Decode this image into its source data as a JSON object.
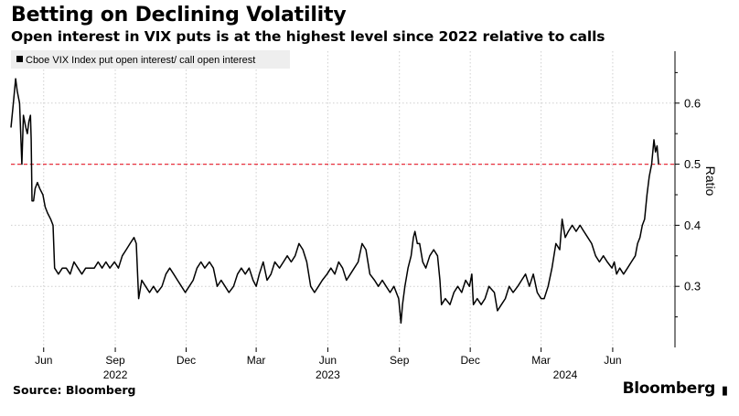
{
  "title": "Betting on Declining Volatility",
  "subtitle": "Open interest in VIX puts is at the highest level since 2022 relative to calls",
  "source": "Source: Bloomberg",
  "brand": "Bloomberg",
  "colors": {
    "line": "#000000",
    "reference": "#e8303d",
    "grid": "#cfcfcf",
    "legend_bg": "#eeeeee"
  },
  "chart_data": {
    "type": "line",
    "legend": "Cboe VIX Index put open interest/ call open interest",
    "legend_position": "top-left",
    "ylabel": "Ratio",
    "ylim": [
      0.2,
      0.685
    ],
    "yticks": [
      0.3,
      0.4,
      0.5,
      0.6
    ],
    "grid": true,
    "reference_line": {
      "y": 0.5,
      "style": "dashed"
    },
    "x_range": [
      "2022-04-20",
      "2024-08-20"
    ],
    "xticks": [
      {
        "date": "2022-06-01",
        "label": "Jun"
      },
      {
        "date": "2022-09-01",
        "label": "Sep"
      },
      {
        "date": "2022-12-01",
        "label": "Dec"
      },
      {
        "date": "2023-03-01",
        "label": "Mar"
      },
      {
        "date": "2023-06-01",
        "label": "Jun"
      },
      {
        "date": "2023-09-01",
        "label": "Sep"
      },
      {
        "date": "2023-12-01",
        "label": "Dec"
      },
      {
        "date": "2024-03-01",
        "label": "Mar"
      },
      {
        "date": "2024-06-01",
        "label": "Jun"
      }
    ],
    "year_labels": [
      {
        "date": "2022-09-01",
        "label": "2022"
      },
      {
        "date": "2023-06-01",
        "label": "2023"
      },
      {
        "date": "2024-04-01",
        "label": "2024"
      }
    ],
    "series": [
      {
        "values": [
          [
            "2022-04-20",
            0.56
          ],
          [
            "2022-04-23",
            0.6
          ],
          [
            "2022-04-26",
            0.64
          ],
          [
            "2022-04-28",
            0.62
          ],
          [
            "2022-05-01",
            0.6
          ],
          [
            "2022-05-04",
            0.5
          ],
          [
            "2022-05-06",
            0.58
          ],
          [
            "2022-05-09",
            0.56
          ],
          [
            "2022-05-11",
            0.55
          ],
          [
            "2022-05-13",
            0.57
          ],
          [
            "2022-05-15",
            0.58
          ],
          [
            "2022-05-16",
            0.54
          ],
          [
            "2022-05-17",
            0.44
          ],
          [
            "2022-05-19",
            0.44
          ],
          [
            "2022-05-21",
            0.46
          ],
          [
            "2022-05-24",
            0.47
          ],
          [
            "2022-05-27",
            0.46
          ],
          [
            "2022-05-31",
            0.45
          ],
          [
            "2022-06-03",
            0.43
          ],
          [
            "2022-06-06",
            0.42
          ],
          [
            "2022-06-10",
            0.41
          ],
          [
            "2022-06-13",
            0.4
          ],
          [
            "2022-06-15",
            0.33
          ],
          [
            "2022-06-20",
            0.32
          ],
          [
            "2022-06-25",
            0.33
          ],
          [
            "2022-06-30",
            0.33
          ],
          [
            "2022-07-05",
            0.32
          ],
          [
            "2022-07-10",
            0.34
          ],
          [
            "2022-07-15",
            0.33
          ],
          [
            "2022-07-20",
            0.32
          ],
          [
            "2022-07-25",
            0.33
          ],
          [
            "2022-07-31",
            0.33
          ],
          [
            "2022-08-05",
            0.33
          ],
          [
            "2022-08-10",
            0.34
          ],
          [
            "2022-08-15",
            0.33
          ],
          [
            "2022-08-20",
            0.34
          ],
          [
            "2022-08-25",
            0.33
          ],
          [
            "2022-08-31",
            0.34
          ],
          [
            "2022-09-05",
            0.33
          ],
          [
            "2022-09-10",
            0.35
          ],
          [
            "2022-09-15",
            0.36
          ],
          [
            "2022-09-20",
            0.37
          ],
          [
            "2022-09-25",
            0.38
          ],
          [
            "2022-09-28",
            0.37
          ],
          [
            "2022-10-01",
            0.28
          ],
          [
            "2022-10-05",
            0.31
          ],
          [
            "2022-10-10",
            0.3
          ],
          [
            "2022-10-15",
            0.29
          ],
          [
            "2022-10-20",
            0.3
          ],
          [
            "2022-10-25",
            0.29
          ],
          [
            "2022-10-31",
            0.3
          ],
          [
            "2022-11-05",
            0.32
          ],
          [
            "2022-11-10",
            0.33
          ],
          [
            "2022-11-15",
            0.32
          ],
          [
            "2022-11-20",
            0.31
          ],
          [
            "2022-11-25",
            0.3
          ],
          [
            "2022-11-30",
            0.29
          ],
          [
            "2022-12-05",
            0.3
          ],
          [
            "2022-12-10",
            0.31
          ],
          [
            "2022-12-15",
            0.33
          ],
          [
            "2022-12-20",
            0.34
          ],
          [
            "2022-12-25",
            0.33
          ],
          [
            "2022-12-31",
            0.34
          ],
          [
            "2023-01-05",
            0.33
          ],
          [
            "2023-01-10",
            0.3
          ],
          [
            "2023-01-15",
            0.31
          ],
          [
            "2023-01-20",
            0.3
          ],
          [
            "2023-01-25",
            0.29
          ],
          [
            "2023-01-31",
            0.3
          ],
          [
            "2023-02-05",
            0.32
          ],
          [
            "2023-02-10",
            0.33
          ],
          [
            "2023-02-15",
            0.32
          ],
          [
            "2023-02-20",
            0.33
          ],
          [
            "2023-02-25",
            0.31
          ],
          [
            "2023-03-01",
            0.3
          ],
          [
            "2023-03-05",
            0.32
          ],
          [
            "2023-03-10",
            0.34
          ],
          [
            "2023-03-15",
            0.31
          ],
          [
            "2023-03-20",
            0.32
          ],
          [
            "2023-03-25",
            0.34
          ],
          [
            "2023-03-31",
            0.33
          ],
          [
            "2023-04-05",
            0.34
          ],
          [
            "2023-04-10",
            0.35
          ],
          [
            "2023-04-15",
            0.34
          ],
          [
            "2023-04-20",
            0.35
          ],
          [
            "2023-04-25",
            0.37
          ],
          [
            "2023-04-30",
            0.36
          ],
          [
            "2023-05-05",
            0.34
          ],
          [
            "2023-05-10",
            0.3
          ],
          [
            "2023-05-15",
            0.29
          ],
          [
            "2023-05-20",
            0.3
          ],
          [
            "2023-05-25",
            0.31
          ],
          [
            "2023-05-31",
            0.32
          ],
          [
            "2023-06-05",
            0.33
          ],
          [
            "2023-06-10",
            0.32
          ],
          [
            "2023-06-15",
            0.34
          ],
          [
            "2023-06-20",
            0.33
          ],
          [
            "2023-06-25",
            0.31
          ],
          [
            "2023-06-30",
            0.32
          ],
          [
            "2023-07-05",
            0.33
          ],
          [
            "2023-07-10",
            0.34
          ],
          [
            "2023-07-15",
            0.37
          ],
          [
            "2023-07-20",
            0.36
          ],
          [
            "2023-07-25",
            0.32
          ],
          [
            "2023-07-31",
            0.31
          ],
          [
            "2023-08-05",
            0.3
          ],
          [
            "2023-08-10",
            0.31
          ],
          [
            "2023-08-15",
            0.3
          ],
          [
            "2023-08-20",
            0.29
          ],
          [
            "2023-08-25",
            0.3
          ],
          [
            "2023-08-31",
            0.28
          ],
          [
            "2023-09-03",
            0.24
          ],
          [
            "2023-09-05",
            0.27
          ],
          [
            "2023-09-08",
            0.3
          ],
          [
            "2023-09-12",
            0.33
          ],
          [
            "2023-09-16",
            0.35
          ],
          [
            "2023-09-19",
            0.38
          ],
          [
            "2023-09-21",
            0.39
          ],
          [
            "2023-09-24",
            0.37
          ],
          [
            "2023-09-27",
            0.37
          ],
          [
            "2023-10-01",
            0.34
          ],
          [
            "2023-10-05",
            0.33
          ],
          [
            "2023-10-10",
            0.35
          ],
          [
            "2023-10-15",
            0.36
          ],
          [
            "2023-10-20",
            0.35
          ],
          [
            "2023-10-23",
            0.31
          ],
          [
            "2023-10-25",
            0.27
          ],
          [
            "2023-10-30",
            0.28
          ],
          [
            "2023-11-05",
            0.27
          ],
          [
            "2023-11-10",
            0.29
          ],
          [
            "2023-11-15",
            0.3
          ],
          [
            "2023-11-20",
            0.29
          ],
          [
            "2023-11-25",
            0.31
          ],
          [
            "2023-11-30",
            0.3
          ],
          [
            "2023-12-03",
            0.32
          ],
          [
            "2023-12-05",
            0.27
          ],
          [
            "2023-12-10",
            0.28
          ],
          [
            "2023-12-15",
            0.27
          ],
          [
            "2023-12-20",
            0.28
          ],
          [
            "2023-12-25",
            0.3
          ],
          [
            "2024-01-01",
            0.29
          ],
          [
            "2024-01-05",
            0.26
          ],
          [
            "2024-01-10",
            0.27
          ],
          [
            "2024-01-15",
            0.28
          ],
          [
            "2024-01-20",
            0.3
          ],
          [
            "2024-01-25",
            0.29
          ],
          [
            "2024-01-31",
            0.3
          ],
          [
            "2024-02-05",
            0.31
          ],
          [
            "2024-02-10",
            0.32
          ],
          [
            "2024-02-15",
            0.3
          ],
          [
            "2024-02-20",
            0.32
          ],
          [
            "2024-02-25",
            0.29
          ],
          [
            "2024-03-01",
            0.28
          ],
          [
            "2024-03-05",
            0.28
          ],
          [
            "2024-03-10",
            0.3
          ],
          [
            "2024-03-15",
            0.33
          ],
          [
            "2024-03-20",
            0.37
          ],
          [
            "2024-03-25",
            0.36
          ],
          [
            "2024-03-28",
            0.41
          ],
          [
            "2024-04-01",
            0.38
          ],
          [
            "2024-04-05",
            0.39
          ],
          [
            "2024-04-10",
            0.4
          ],
          [
            "2024-04-15",
            0.39
          ],
          [
            "2024-04-20",
            0.4
          ],
          [
            "2024-04-25",
            0.39
          ],
          [
            "2024-04-30",
            0.38
          ],
          [
            "2024-05-05",
            0.37
          ],
          [
            "2024-05-10",
            0.35
          ],
          [
            "2024-05-15",
            0.34
          ],
          [
            "2024-05-20",
            0.35
          ],
          [
            "2024-05-25",
            0.34
          ],
          [
            "2024-05-31",
            0.33
          ],
          [
            "2024-06-03",
            0.34
          ],
          [
            "2024-06-06",
            0.32
          ],
          [
            "2024-06-10",
            0.33
          ],
          [
            "2024-06-15",
            0.32
          ],
          [
            "2024-06-20",
            0.33
          ],
          [
            "2024-06-25",
            0.34
          ],
          [
            "2024-06-30",
            0.35
          ],
          [
            "2024-07-03",
            0.37
          ],
          [
            "2024-07-06",
            0.38
          ],
          [
            "2024-07-09",
            0.4
          ],
          [
            "2024-07-12",
            0.41
          ],
          [
            "2024-07-15",
            0.45
          ],
          [
            "2024-07-18",
            0.48
          ],
          [
            "2024-07-21",
            0.5
          ],
          [
            "2024-07-24",
            0.54
          ],
          [
            "2024-07-26",
            0.52
          ],
          [
            "2024-07-28",
            0.53
          ],
          [
            "2024-07-30",
            0.5
          ]
        ]
      }
    ]
  }
}
